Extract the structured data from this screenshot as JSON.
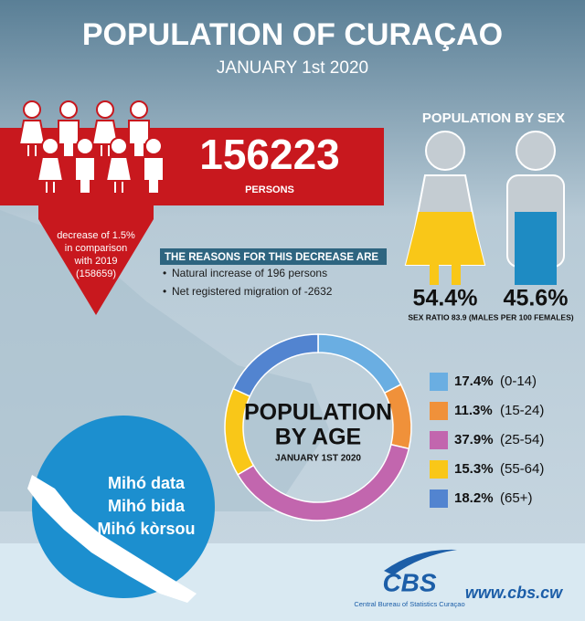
{
  "header": {
    "title": "POPULATION OF CURAÇAO",
    "subtitle": "JANUARY 1st 2020"
  },
  "total": {
    "value": "156223",
    "unit": "PERSONS",
    "decrease": [
      "decrease of 1.5%",
      "in comparison",
      "with 2019",
      "(158659)"
    ]
  },
  "reasons": {
    "title": "THE REASONS FOR THIS DECREASE ARE",
    "items": [
      "Natural increase of 196 persons",
      "Net registered migration of -2632"
    ]
  },
  "sex": {
    "title": "POPULATION BY SEX",
    "female": "54.4%",
    "male": "45.6%",
    "ratio": "SEX RATIO 83.9 (MALES PER 100 FEMALES)"
  },
  "chart_data": {
    "type": "donut",
    "title": [
      "POPULATION",
      "BY AGE"
    ],
    "subtitle": "JANUARY 1ST 2020",
    "categories": [
      "(0-14)",
      "(15-24)",
      "(25-54)",
      "(55-64)",
      "(65+)"
    ],
    "values": [
      17.4,
      11.3,
      37.9,
      15.3,
      18.2
    ],
    "value_labels": [
      "17.4%",
      "11.3%",
      "37.9%",
      "15.3%",
      "18.2%"
    ],
    "colors": [
      "#6aaee2",
      "#f0913a",
      "#c266ae",
      "#f9c718",
      "#5284d0"
    ]
  },
  "slogan": [
    "Mihó data",
    "Mihó bida",
    "Mihó kòrsou"
  ],
  "footer": {
    "logo": "CBS",
    "org": "Central Bureau of Statistics Curaçao",
    "url": "www.cbs.cw"
  }
}
